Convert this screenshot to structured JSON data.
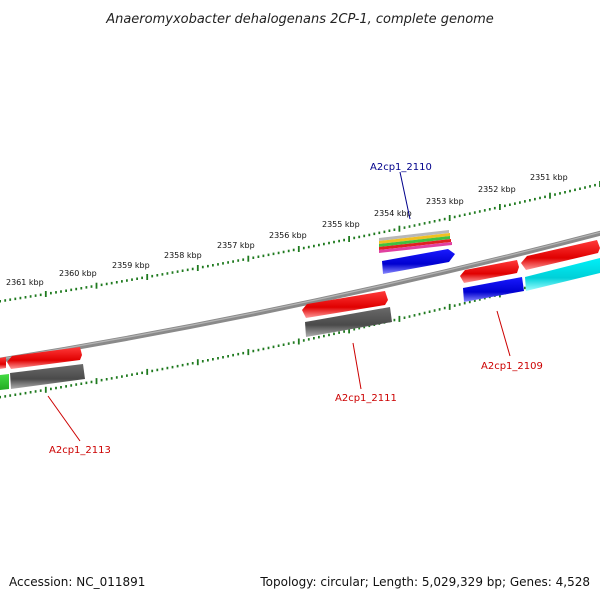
{
  "title": "Anaeromyxobacter dehalogenans 2CP-1, complete genome",
  "footer": {
    "accession": "Accession: NC_011891",
    "summary": "Topology: circular; Length: 5,029,329 bp; Genes: 4,528"
  },
  "scale_labels": [
    "2361 kbp",
    "2360 kbp",
    "2359 kbp",
    "2358 kbp",
    "2357 kbp",
    "2356 kbp",
    "2355 kbp",
    "2354 kbp",
    "2353 kbp",
    "2352 kbp",
    "2351 kbp"
  ],
  "gene_labels": [
    {
      "text": "A2cp1_2110",
      "color": "#00008b"
    },
    {
      "text": "A2cp1_2109",
      "color": "#cc0000"
    },
    {
      "text": "A2cp1_2111",
      "color": "#cc0000"
    },
    {
      "text": "A2cp1_2113",
      "color": "#cc0000"
    }
  ],
  "colors": {
    "backbone": "#808080",
    "tick": "#1f7a1f",
    "red": "#ee1111",
    "gray": "#5a5a5a",
    "blue": "#0000ee",
    "cyan": "#00e0e8",
    "green": "#33cc33"
  }
}
